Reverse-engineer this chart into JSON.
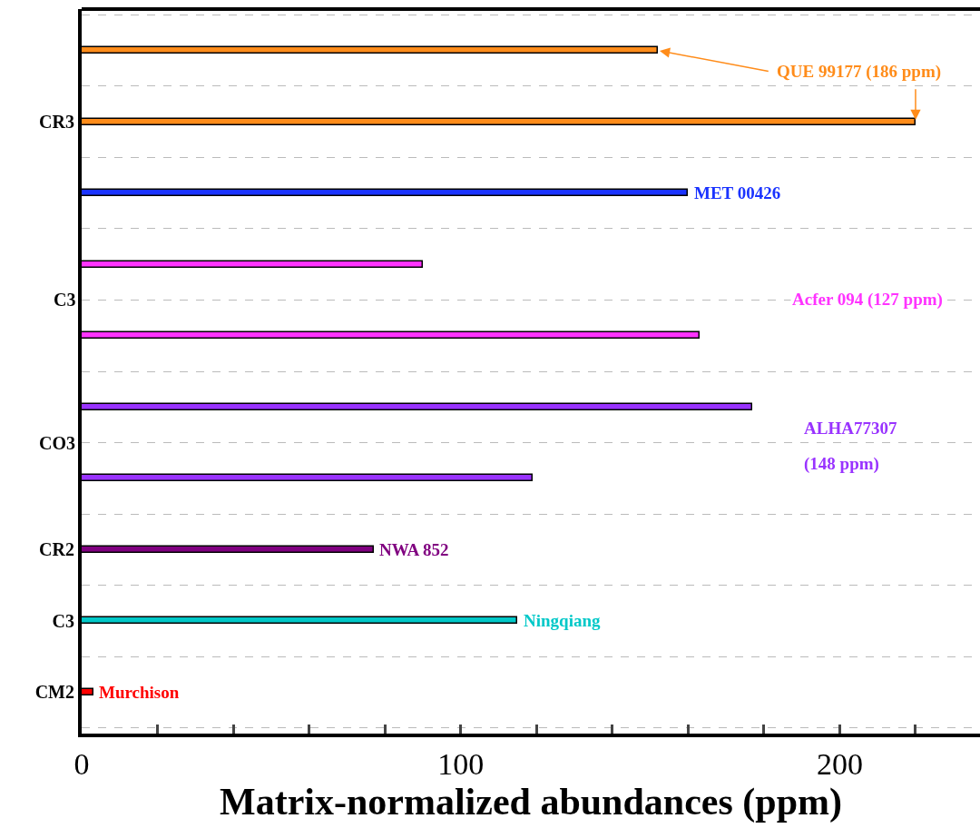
{
  "chart_data": {
    "type": "bar",
    "orientation": "horizontal",
    "categories": [
      null,
      "CR3",
      null,
      null,
      null,
      null,
      null,
      "CR2",
      "C3",
      "CM2"
    ],
    "values": [
      152,
      220,
      160,
      90,
      163,
      177,
      119,
      77,
      115,
      3
    ],
    "colors": [
      "#ff8c1a",
      "#ff8c1a",
      "#1a33ff",
      "#ff33ff",
      "#ff33ff",
      "#9933ff",
      "#9933ff",
      "#800080",
      "#00c8c8",
      "#ff0000"
    ],
    "xlim": [
      0,
      237
    ],
    "xticks": [
      0,
      {
        "value": 20,
        "label": null
      },
      {
        "value": 40,
        "label": null
      },
      {
        "value": 60,
        "label": null
      },
      {
        "value": 80,
        "label": null
      },
      100,
      {
        "value": 120,
        "label": null
      },
      {
        "value": 140,
        "label": null
      },
      {
        "value": 160,
        "label": null
      },
      {
        "value": 180,
        "label": null
      },
      200,
      {
        "value": 220,
        "label": null
      }
    ],
    "xlabel": "Matrix-normalized abundances (ppm)",
    "grid": "y",
    "annotations": [
      {
        "text": "QUE 99177 (186 ppm)",
        "x": 220,
        "y": "CR3"
      },
      "MET 00426",
      "Acfer 094 (127 ppm)",
      "ALHA77307",
      "NWA 852",
      "Ningqiang",
      "Murchison",
      "(148 ppm)",
      "C3",
      "CO3"
    ]
  }
}
